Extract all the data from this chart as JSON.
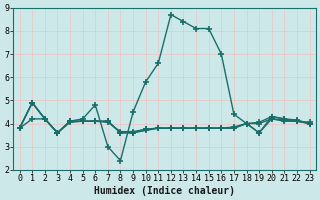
{
  "xlabel": "Humidex (Indice chaleur)",
  "background_color": "#cce8e8",
  "grid_color": "#e8c8c8",
  "line_color": "#1a6e6a",
  "xlim": [
    -0.5,
    23.5
  ],
  "ylim": [
    2,
    9
  ],
  "yticks": [
    2,
    3,
    4,
    5,
    6,
    7,
    8,
    9
  ],
  "xticks": [
    0,
    1,
    2,
    3,
    4,
    5,
    6,
    7,
    8,
    9,
    10,
    11,
    12,
    13,
    14,
    15,
    16,
    17,
    18,
    19,
    20,
    21,
    22,
    23
  ],
  "series": [
    [
      3.8,
      4.9,
      4.2,
      3.6,
      4.1,
      4.2,
      4.8,
      3.0,
      2.4,
      4.5,
      5.8,
      6.6,
      8.7,
      8.4,
      8.1,
      8.1,
      7.0,
      4.4,
      4.0,
      3.6,
      4.3,
      4.2,
      4.1,
      4.0
    ],
    [
      3.8,
      4.9,
      4.2,
      3.6,
      4.1,
      4.1,
      4.1,
      4.1,
      3.6,
      3.6,
      3.75,
      3.8,
      3.8,
      3.8,
      3.8,
      3.8,
      3.8,
      3.85,
      4.0,
      4.0,
      4.2,
      4.1,
      4.1,
      4.05
    ],
    [
      3.8,
      4.2,
      4.2,
      3.6,
      4.05,
      4.1,
      4.1,
      4.05,
      3.65,
      3.65,
      3.75,
      3.8,
      3.8,
      3.8,
      3.8,
      3.8,
      3.8,
      3.8,
      4.0,
      3.6,
      4.2,
      4.15,
      4.1,
      4.0
    ],
    [
      3.8,
      4.9,
      4.2,
      3.6,
      4.1,
      4.1,
      4.1,
      4.1,
      3.6,
      3.6,
      3.7,
      3.8,
      3.8,
      3.8,
      3.8,
      3.8,
      3.8,
      3.8,
      4.0,
      4.05,
      4.3,
      4.2,
      4.15,
      4.0
    ]
  ],
  "marker": "+",
  "markersize": 4,
  "linewidth": 1.0,
  "xlabel_fontsize": 7,
  "tick_fontsize": 6,
  "spine_color": "#1a6e6a"
}
